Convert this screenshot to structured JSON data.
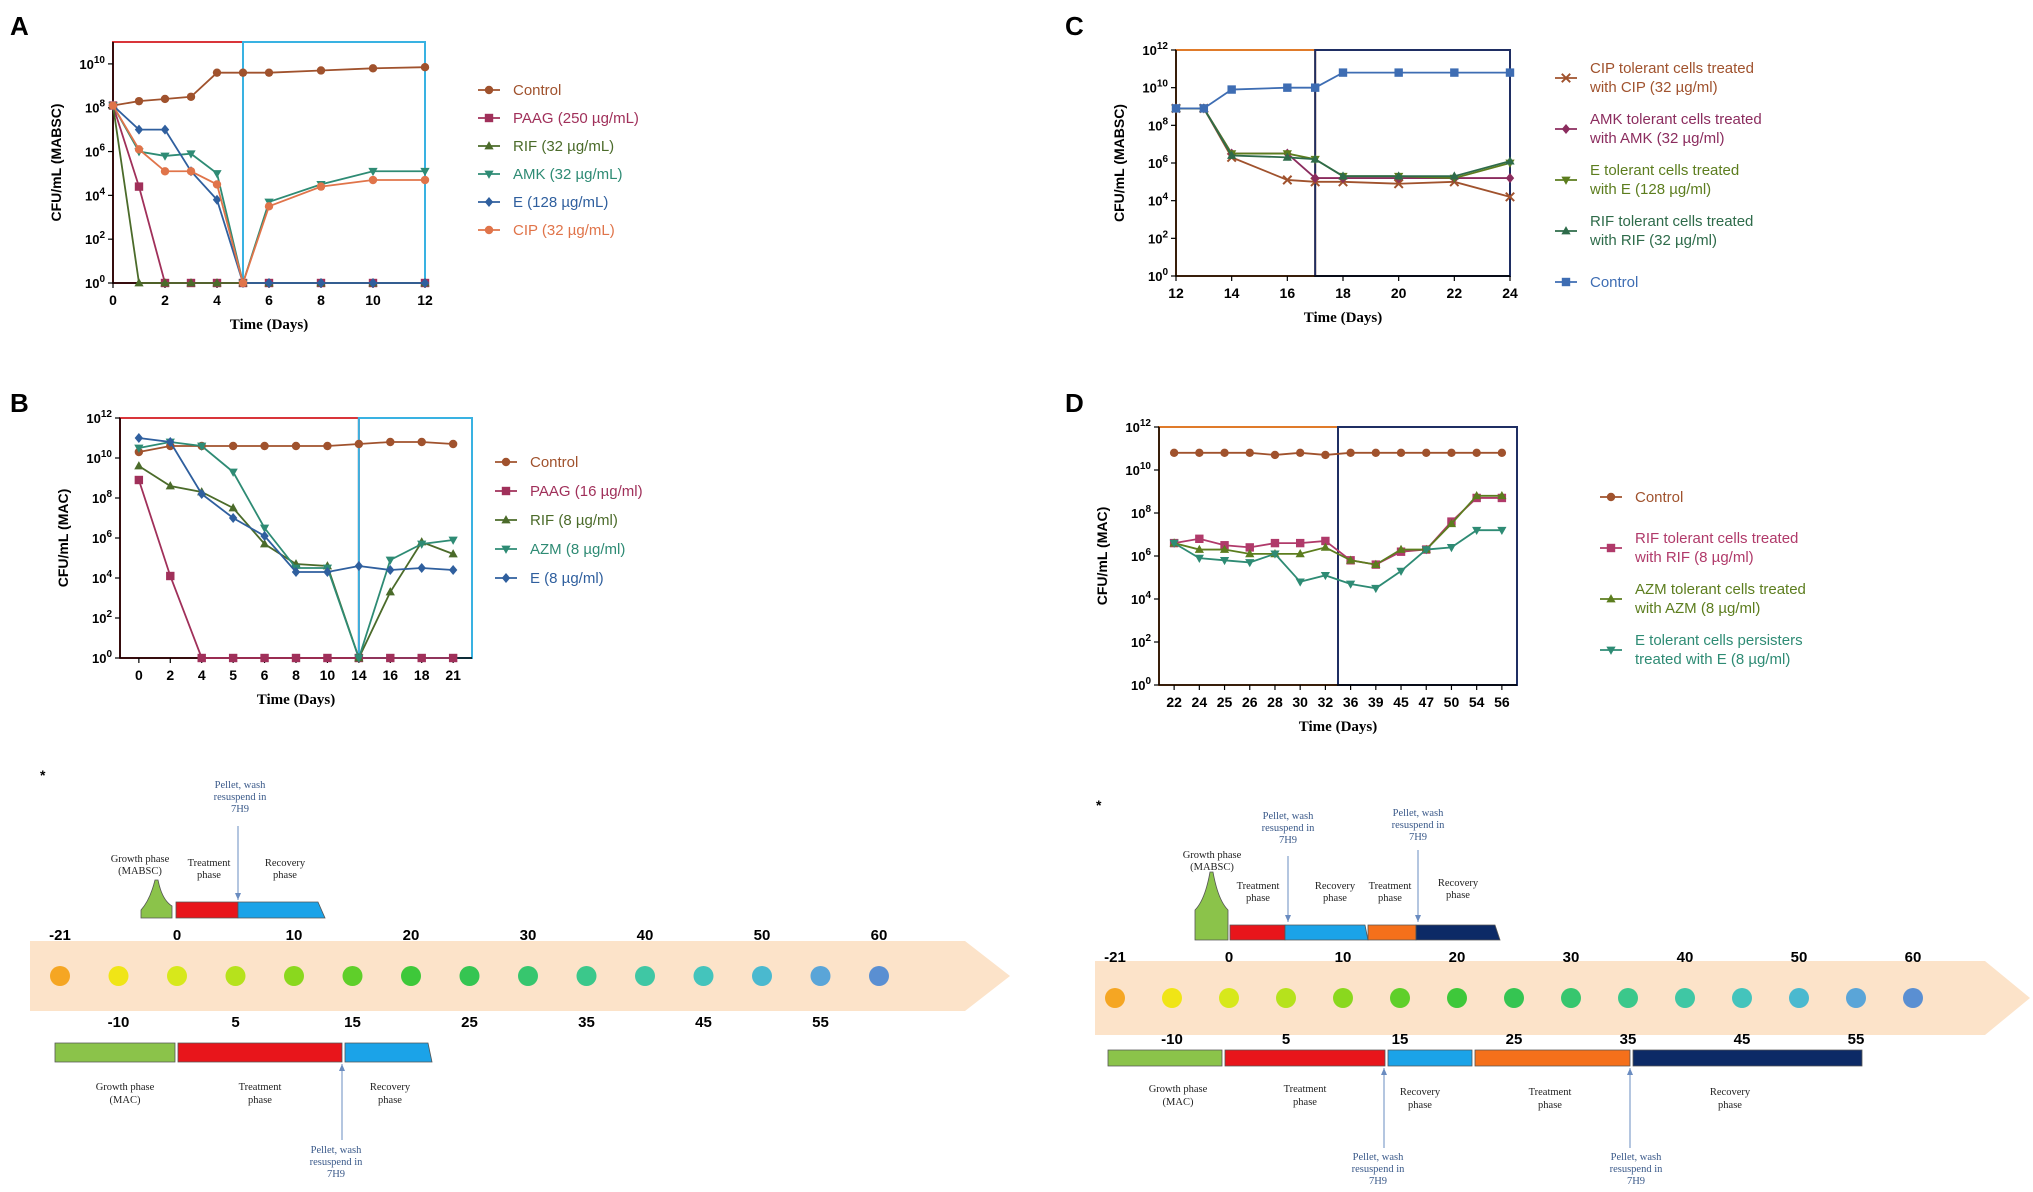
{
  "chart_data": [
    {
      "panel": "A",
      "type": "line",
      "y_log": true,
      "title": "",
      "xlabel": "Time (Days)",
      "ylabel": "CFU/mL (MABSC)",
      "x_ticks": [
        "0",
        "2",
        "4",
        "6",
        "8",
        "10",
        "12"
      ],
      "y_ticks": [
        0,
        2,
        4,
        6,
        8,
        10
      ],
      "xlim": [
        0,
        12
      ],
      "ylim": [
        0,
        11
      ],
      "phase_boxes": [
        {
          "from": 0,
          "to": 5,
          "color": "#d9353a"
        },
        {
          "from": 5,
          "to": 12,
          "color": "#39b2e2"
        }
      ],
      "series": [
        {
          "name": "Control",
          "color": "#a0522d",
          "marker": "circle",
          "x": [
            0,
            1,
            2,
            3,
            4,
            5,
            6,
            8,
            10,
            12
          ],
          "y": [
            8.1,
            8.3,
            8.4,
            8.5,
            9.6,
            9.6,
            9.6,
            9.7,
            9.8,
            9.85
          ]
        },
        {
          "name": "PAAG (250 µg/mL)",
          "color": "#a0305a",
          "marker": "square",
          "x": [
            0,
            1,
            2,
            3,
            4,
            5,
            6,
            8,
            10,
            12
          ],
          "y": [
            8.1,
            4.4,
            0,
            0,
            0,
            0,
            0,
            0,
            0,
            0
          ]
        },
        {
          "name": "RIF (32 µg/mL)",
          "color": "#4b6b2a",
          "marker": "triangle",
          "x": [
            0,
            1,
            2,
            3,
            4,
            5,
            6,
            8,
            10,
            12
          ],
          "y": [
            8.1,
            0,
            0,
            0,
            0,
            0,
            0,
            0,
            0,
            0
          ]
        },
        {
          "name": "AMK (32 µg/mL)",
          "color": "#2e8b74",
          "marker": "triangle-down",
          "x": [
            0,
            1,
            2,
            3,
            4,
            5,
            6,
            8,
            10,
            12
          ],
          "y": [
            8.1,
            6,
            5.8,
            5.9,
            5,
            0,
            3.7,
            4.5,
            5.1,
            5.1
          ]
        },
        {
          "name": "E (128 µg/mL)",
          "color": "#2f5f9e",
          "marker": "diamond",
          "x": [
            0,
            1,
            2,
            3,
            4,
            5,
            6,
            8,
            10,
            12
          ],
          "y": [
            8.1,
            7,
            7,
            5.1,
            3.8,
            0,
            0,
            0,
            0,
            0
          ]
        },
        {
          "name": "CIP (32 µg/mL)",
          "color": "#e0744a",
          "marker": "circle",
          "x": [
            0,
            1,
            2,
            3,
            4,
            5,
            6,
            8,
            10,
            12
          ],
          "y": [
            8.1,
            6.1,
            5.1,
            5.1,
            4.5,
            0,
            3.5,
            4.4,
            4.7,
            4.7
          ]
        }
      ]
    },
    {
      "panel": "B",
      "type": "line",
      "y_log": true,
      "title": "",
      "xlabel": "Time (Days)",
      "ylabel": "CFU/mL (MAC)",
      "x_ticks": [
        "0",
        "2",
        "4",
        "5",
        "6",
        "8",
        "10",
        "14",
        "16",
        "18",
        "21"
      ],
      "y_ticks": [
        0,
        2,
        4,
        6,
        8,
        10,
        12
      ],
      "ylim": [
        0,
        12
      ],
      "phase_boxes": [
        {
          "from_index": 0,
          "to_index": 7,
          "color": "#d9353a"
        },
        {
          "from_index": 7,
          "to_index": 10,
          "color": "#39b2e2"
        }
      ],
      "series": [
        {
          "name": "Control",
          "color": "#a0522d",
          "marker": "circle",
          "y": [
            10.3,
            10.6,
            10.6,
            10.6,
            10.6,
            10.6,
            10.6,
            10.7,
            10.8,
            10.8,
            10.7
          ]
        },
        {
          "name": "PAAG (16 µg/ml)",
          "color": "#a0305a",
          "marker": "square",
          "y": [
            8.9,
            4.1,
            0,
            0,
            0,
            0,
            0,
            0,
            0,
            0,
            0
          ]
        },
        {
          "name": "RIF (8 µg/ml)",
          "color": "#4b6b2a",
          "marker": "triangle",
          "y": [
            9.6,
            8.6,
            8.3,
            7.5,
            5.7,
            4.7,
            4.6,
            0,
            3.3,
            5.8,
            5.2
          ]
        },
        {
          "name": "AZM (8 µg/ml)",
          "color": "#2e8b74",
          "marker": "triangle-down",
          "y": [
            10.5,
            10.8,
            10.6,
            9.3,
            6.5,
            4.5,
            4.5,
            0,
            4.9,
            5.7,
            5.9
          ]
        },
        {
          "name": "E (8 µg/ml)",
          "color": "#2f5f9e",
          "marker": "diamond",
          "y": [
            11,
            10.8,
            8.2,
            7,
            6.1,
            4.3,
            4.3,
            4.6,
            4.4,
            4.5,
            4.4
          ]
        }
      ]
    },
    {
      "panel": "C",
      "type": "line",
      "y_log": true,
      "title": "",
      "xlabel": "Time (Days)",
      "ylabel": "CFU/mL (MABSC)",
      "x_ticks": [
        "12",
        "14",
        "16",
        "18",
        "20",
        "22",
        "24"
      ],
      "y_ticks": [
        0,
        2,
        4,
        6,
        8,
        10,
        12
      ],
      "xlim": [
        12,
        24
      ],
      "ylim": [
        0,
        12
      ],
      "phase_boxes": [
        {
          "from": 12,
          "to": 17,
          "color": "#e07b2a"
        },
        {
          "from": 17,
          "to": 24,
          "color": "#1f2e63"
        }
      ],
      "series": [
        {
          "name": "CIP tolerant cells treated with CIP (32 µg/ml)",
          "color": "#a0522d",
          "marker": "x",
          "x": [
            12,
            13,
            14,
            16,
            17,
            18,
            20,
            22,
            24
          ],
          "y": [
            8.9,
            8.9,
            6.3,
            5.1,
            5,
            5,
            4.9,
            5,
            4.2
          ]
        },
        {
          "name": "AMK tolerant cells treated with AMK (32 µg/ml)",
          "color": "#8b2c5e",
          "marker": "diamond",
          "x": [
            12,
            13,
            14,
            16,
            17,
            18,
            20,
            22,
            24
          ],
          "y": [
            8.9,
            8.9,
            6.5,
            6.5,
            5.2,
            5.2,
            5.2,
            5.2,
            5.2
          ]
        },
        {
          "name": "E tolerant cells treated with E (128 µg/ml)",
          "color": "#5c7d1e",
          "marker": "triangle-down",
          "x": [
            12,
            13,
            14,
            16,
            17,
            18,
            20,
            22,
            24
          ],
          "y": [
            8.9,
            8.9,
            6.5,
            6.5,
            6.2,
            5.3,
            5.3,
            5.2,
            6
          ]
        },
        {
          "name": "RIF tolerant cells treated with RIF (32 µg/ml)",
          "color": "#2e6b4a",
          "marker": "triangle",
          "x": [
            12,
            13,
            14,
            16,
            17,
            18,
            20,
            22,
            24
          ],
          "y": [
            8.9,
            8.9,
            6.4,
            6.3,
            6.2,
            5.3,
            5.3,
            5.3,
            6.1
          ]
        },
        {
          "name": "Control",
          "color": "#3e6db3",
          "marker": "square",
          "x": [
            12,
            13,
            14,
            16,
            17,
            18,
            20,
            22,
            24
          ],
          "y": [
            8.9,
            8.9,
            9.9,
            10,
            10,
            10.8,
            10.8,
            10.8,
            10.8
          ]
        }
      ]
    },
    {
      "panel": "D",
      "type": "line",
      "y_log": true,
      "title": "",
      "xlabel": "Time (Days)",
      "ylabel": "CFU/mL (MAC)",
      "x_ticks": [
        "22",
        "24",
        "25",
        "26",
        "28",
        "30",
        "32",
        "36",
        "39",
        "45",
        "47",
        "50",
        "54",
        "56"
      ],
      "y_ticks": [
        0,
        2,
        4,
        6,
        8,
        10,
        12
      ],
      "ylim": [
        0,
        12
      ],
      "phase_boxes": [
        {
          "from_index": 0,
          "to_index": 6.5,
          "color": "#e07b2a"
        },
        {
          "from_index": 6.5,
          "to_index": 13,
          "color": "#1f2e63"
        }
      ],
      "series": [
        {
          "name": "Control",
          "color": "#a0522d",
          "marker": "circle",
          "y": [
            10.8,
            10.8,
            10.8,
            10.8,
            10.7,
            10.8,
            10.7,
            10.8,
            10.8,
            10.8,
            10.8,
            10.8,
            10.8,
            10.8
          ]
        },
        {
          "name": "RIF tolerant cells treated with RIF (8 µg/ml)",
          "color": "#b03a6a",
          "marker": "square",
          "y": [
            6.6,
            6.8,
            6.5,
            6.4,
            6.6,
            6.6,
            6.7,
            5.8,
            5.6,
            6.2,
            6.3,
            7.6,
            8.7,
            8.7
          ]
        },
        {
          "name": "AZM tolerant cells treated with AZM (8 µg/ml)",
          "color": "#5c7d1e",
          "marker": "triangle",
          "y": [
            6.6,
            6.3,
            6.3,
            6.1,
            6.1,
            6.1,
            6.4,
            5.8,
            5.6,
            6.3,
            6.3,
            7.5,
            8.8,
            8.8
          ]
        },
        {
          "name": "E tolerant cells persisters treated with E (8 µg/ml)",
          "color": "#2e8b74",
          "marker": "triangle-down",
          "y": [
            6.6,
            5.9,
            5.8,
            5.7,
            6.1,
            4.8,
            5.1,
            4.7,
            4.5,
            5.3,
            6.3,
            6.4,
            7.2,
            7.2
          ]
        }
      ]
    }
  ],
  "panels": {
    "a": {
      "letter": "A"
    },
    "b": {
      "letter": "B"
    },
    "c": {
      "letter": "C"
    },
    "d": {
      "letter": "D"
    }
  },
  "timelines": {
    "mac": {
      "asterisk": "*",
      "top_numbers": [
        "-21",
        "0",
        "10",
        "20",
        "30",
        "40",
        "50",
        "60"
      ],
      "bottom_numbers": [
        "-10",
        "5",
        "15",
        "25",
        "35",
        "45",
        "55"
      ],
      "above_phases": [
        {
          "label": "Growth phase\n(MABSC)",
          "color": "#8bc34a"
        },
        {
          "label": "Treatment\nphase",
          "color": "#e8151b"
        },
        {
          "label": "Recovery\nphase",
          "color": "#1ba3e8"
        }
      ],
      "above_note": "Pellet, wash\nresuspend in\n7H9",
      "below_phases": [
        {
          "label": "Growth phase\n(MAC)",
          "color": "#8bc34a"
        },
        {
          "label": "Treatment\nphase",
          "color": "#e8151b"
        },
        {
          "label": "Recovery\nphase",
          "color": "#1ba3e8"
        }
      ],
      "below_note": "Pellet, wash\nresuspend in\n7H9",
      "dot_colors": [
        "#f5a623",
        "#f0e516",
        "#d7e81b",
        "#b6e21c",
        "#8ad81e",
        "#5fcf2a",
        "#3ec83a",
        "#35c552",
        "#37c66e",
        "#3bc88b",
        "#3fc7a4",
        "#44c4bc",
        "#4ab9cf",
        "#5aa5d8",
        "#5a8fd2"
      ]
    },
    "mabsc": {
      "asterisk": "*",
      "top_numbers": [
        "-21",
        "0",
        "10",
        "20",
        "30",
        "40",
        "50",
        "60"
      ],
      "bottom_numbers": [
        "-10",
        "5",
        "15",
        "25",
        "35",
        "45",
        "55"
      ],
      "above_phases": [
        {
          "label": "Growth phase\n(MABSC)",
          "color": "#8bc34a"
        },
        {
          "label": "Treatment\nphase",
          "color": "#e8151b"
        },
        {
          "label": "Recovery\nphase",
          "color": "#1ba3e8"
        },
        {
          "label": "Treatment\nphase",
          "color": "#f5701b"
        },
        {
          "label": "Recovery\nphase",
          "color": "#0c2a66"
        }
      ],
      "above_notes": [
        "Pellet, wash\nresuspend in\n7H9",
        "Pellet, wash\nresuspend in\n7H9"
      ],
      "below_phases": [
        {
          "label": "Growth phase\n(MAC)",
          "color": "#8bc34a"
        },
        {
          "label": "Treatment\nphase",
          "color": "#e8151b"
        },
        {
          "label": "Recovery\nphase",
          "color": "#1ba3e8"
        },
        {
          "label": "Treatment\nphase",
          "color": "#f5701b"
        },
        {
          "label": "Recovery\nphase",
          "color": "#0c2a66"
        }
      ],
      "below_notes": [
        "Pellet, wash\nresuspend in\n7H9",
        "Pellet, wash\nresuspend in\n7H9"
      ],
      "dot_colors": [
        "#f5a623",
        "#f0e516",
        "#d7e81b",
        "#b6e21c",
        "#8ad81e",
        "#5fcf2a",
        "#3ec83a",
        "#35c552",
        "#37c66e",
        "#3bc88b",
        "#3fc7a4",
        "#44c4bc",
        "#4ab9cf",
        "#5aa5d8",
        "#5a8fd2"
      ]
    }
  }
}
